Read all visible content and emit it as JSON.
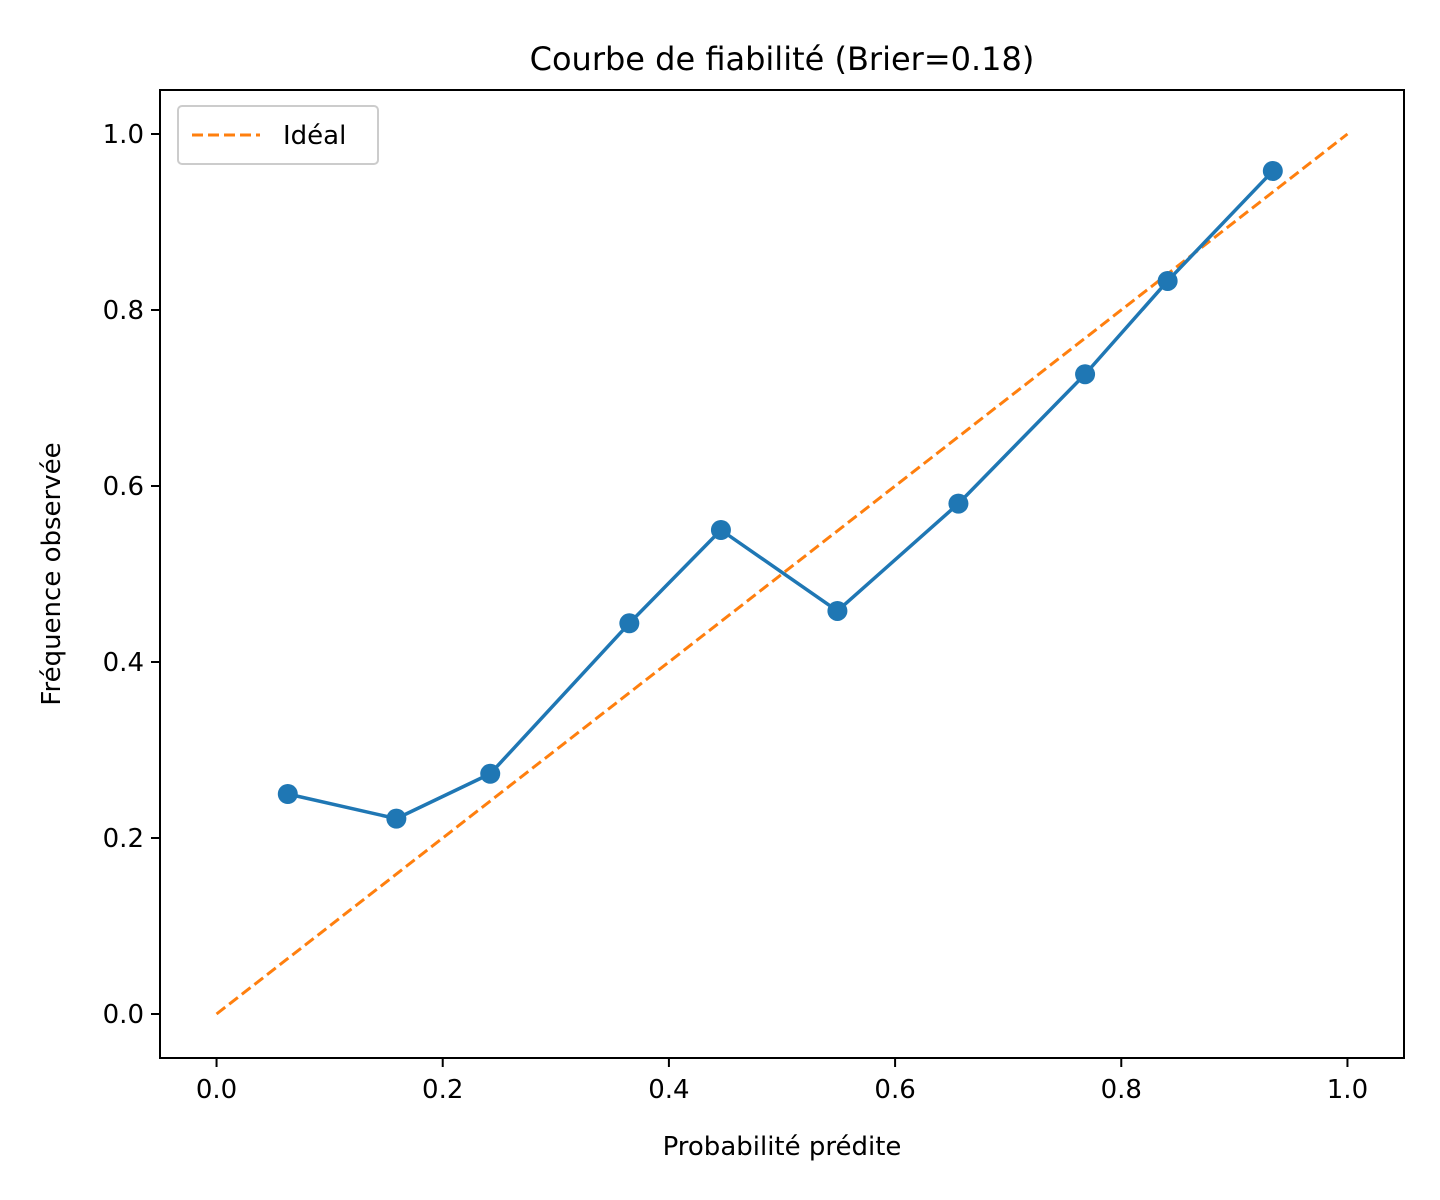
{
  "chart_data": {
    "type": "line",
    "title": "Courbe de fiabilité (Brier=0.18)",
    "xlabel": "Probabilité prédite",
    "ylabel": "Fréquence observée",
    "xlim": [
      -0.05,
      1.05
    ],
    "ylim": [
      -0.05,
      1.05
    ],
    "xticks": [
      "0.0",
      "0.2",
      "0.4",
      "0.6",
      "0.8",
      "1.0"
    ],
    "yticks": [
      "0.0",
      "0.2",
      "0.4",
      "0.6",
      "0.8",
      "1.0"
    ],
    "grid": false,
    "legend_position": "top-left",
    "series": [
      {
        "name": "",
        "color": "#1f77b4",
        "marker": "circle",
        "x": [
          0.063,
          0.159,
          0.242,
          0.365,
          0.446,
          0.549,
          0.656,
          0.768,
          0.841,
          0.934
        ],
        "y": [
          0.25,
          0.222,
          0.273,
          0.444,
          0.55,
          0.458,
          0.58,
          0.727,
          0.833,
          0.958
        ]
      },
      {
        "name": "Idéal",
        "color": "#ff7f0e",
        "style": "dashed",
        "x": [
          0.0,
          1.0
        ],
        "y": [
          0.0,
          1.0
        ]
      }
    ]
  }
}
